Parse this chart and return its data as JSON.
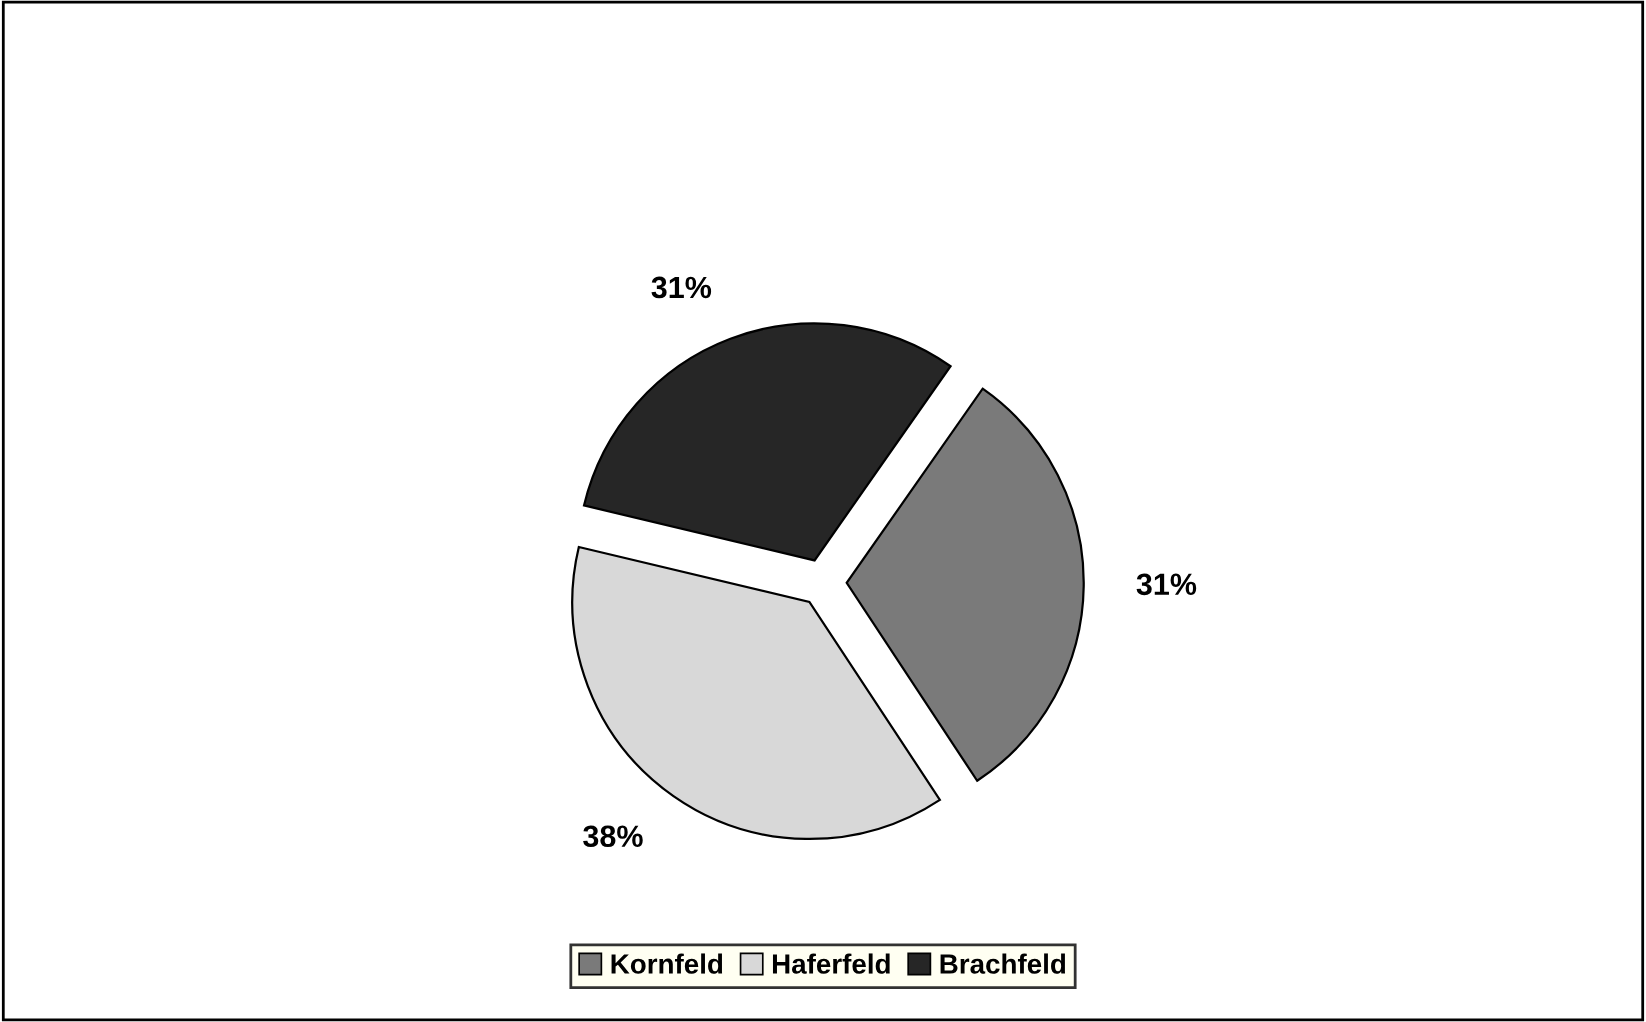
{
  "chart_data": {
    "type": "pie",
    "categories": [
      "Kornfeld",
      "Haferfeld",
      "Brachfeld"
    ],
    "values": [
      31,
      38,
      31
    ],
    "colors": [
      "#7a7a7a",
      "#d8d8d8",
      "#262626"
    ],
    "value_labels": [
      "31%",
      "38%",
      "31%"
    ],
    "legend": "bottom"
  }
}
